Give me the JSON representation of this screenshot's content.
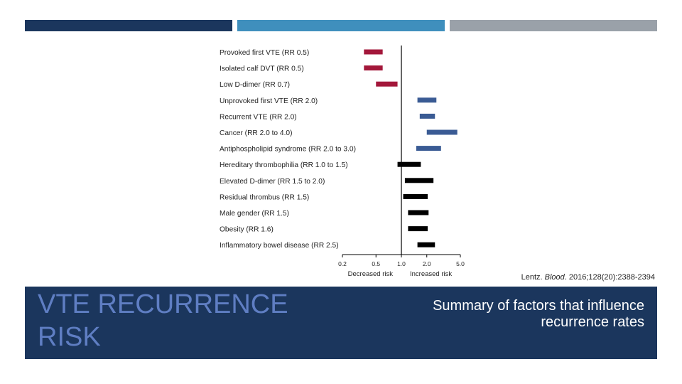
{
  "colors": {
    "bar1": "#1b365d",
    "bar2": "#3f8fbd",
    "bar3": "#9aa1a9",
    "banner": "#1b365d",
    "decreased": "#a3173a",
    "increased_major": "#3a5b94",
    "increased_minor": "#000000"
  },
  "citation": {
    "author": "Lentz.",
    "journal": "Blood",
    "ref": "2016;128(20):2388-2394"
  },
  "banner": {
    "title": "VTE RECURRENCE RISK",
    "subtitle": "Summary of factors that influence recurrence rates"
  },
  "chart_data": {
    "type": "forest",
    "scale": "log",
    "xlim": [
      0.2,
      5.0
    ],
    "reference": 1.0,
    "x_ticks": [
      "0.2",
      "0.5",
      "1.0",
      "2.0",
      "5.0"
    ],
    "x_tick_values": [
      0.2,
      0.5,
      1.0,
      2.0,
      5.0
    ],
    "x_side_labels": [
      "Decreased risk",
      "Increased risk"
    ],
    "grid": false,
    "rows": [
      {
        "label": "Provoked first VTE (RR 0.5)",
        "low": 0.36,
        "high": 0.6,
        "group": "decreased"
      },
      {
        "label": "Isolated calf DVT (RR 0.5)",
        "low": 0.36,
        "high": 0.6,
        "group": "decreased"
      },
      {
        "label": "Low D-dimer (RR 0.7)",
        "low": 0.5,
        "high": 0.9,
        "group": "decreased"
      },
      {
        "label": "Unprovoked first VTE (RR 2.0)",
        "low": 1.55,
        "high": 2.6,
        "group": "increased_major"
      },
      {
        "label": "Recurrent VTE (RR 2.0)",
        "low": 1.65,
        "high": 2.5,
        "group": "increased_major"
      },
      {
        "label": "Cancer (RR 2.0 to 4.0)",
        "low": 2.0,
        "high": 4.6,
        "group": "increased_major"
      },
      {
        "label": "Antiphospholipid syndrome (RR 2.0 to 3.0)",
        "low": 1.5,
        "high": 2.95,
        "group": "increased_major"
      },
      {
        "label": "Hereditary thrombophilia (RR 1.0 to 1.5)",
        "low": 0.9,
        "high": 1.7,
        "group": "increased_minor"
      },
      {
        "label": "Elevated D-dimer (RR 1.5 to 2.0)",
        "low": 1.1,
        "high": 2.4,
        "group": "increased_minor"
      },
      {
        "label": "Residual thrombus (RR 1.5)",
        "low": 1.05,
        "high": 2.05,
        "group": "increased_minor"
      },
      {
        "label": "Male gender (RR 1.5)",
        "low": 1.2,
        "high": 2.1,
        "group": "increased_minor"
      },
      {
        "label": "Obesity (RR 1.6)",
        "low": 1.2,
        "high": 2.05,
        "group": "increased_minor"
      },
      {
        "label": "Inflammatory bowel disease (RR 2.5)",
        "low": 1.55,
        "high": 2.5,
        "group": "increased_minor"
      }
    ]
  }
}
